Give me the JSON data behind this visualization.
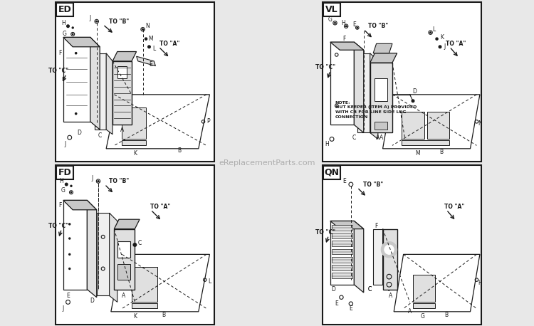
{
  "bg_color": "#e8e8e8",
  "panel_bg": "#ffffff",
  "border_color": "#000000",
  "quadrants": [
    "ED",
    "VL",
    "FD",
    "QN"
  ],
  "note_vl": "NOTE:\nNUT KEEPER (ITEM A) PROVIDED\nWITH CB FOR LINE SIDE LUG\nCONNECTION",
  "watermark": "eReplacementParts.com",
  "label_fontsize": 5.5,
  "quad_label_fontsize": 9,
  "line_color": "#1a1a1a",
  "gray1": "#c8c8c8",
  "gray2": "#e0e0e0",
  "gray3": "#f0f0f0"
}
